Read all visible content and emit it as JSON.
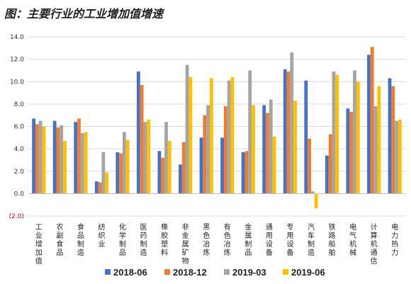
{
  "title": "图：主要行业的工业增加值增速",
  "chart_data": {
    "type": "bar",
    "title": "",
    "xlabel": "",
    "ylabel": "",
    "ylim": [
      -2,
      14
    ],
    "yticks": [
      {
        "value": 14,
        "label": "14.0"
      },
      {
        "value": 12,
        "label": "12.0"
      },
      {
        "value": 10,
        "label": "10.0"
      },
      {
        "value": 8,
        "label": "8.0"
      },
      {
        "value": 6,
        "label": "6.0"
      },
      {
        "value": 4,
        "label": "4.0"
      },
      {
        "value": 2,
        "label": "2.0"
      },
      {
        "value": 0,
        "label": "0.0"
      },
      {
        "value": -2,
        "label": "(2.0)"
      }
    ],
    "categories": [
      "工业增加值",
      "农副食品",
      "食品制造",
      "纺织业",
      "化学制品",
      "医药制造",
      "橡胶塑料",
      "非金属矿物",
      "黑色冶炼",
      "有色冶炼",
      "金属制品",
      "通用设备",
      "专用设备",
      "汽车制造",
      "铁路船舶",
      "电气机械",
      "计算机通信",
      "电力热力"
    ],
    "series": [
      {
        "name": "2018-06",
        "color": "#4472c4",
        "values": [
          6.7,
          6.5,
          6.4,
          1.1,
          3.7,
          10.9,
          3.8,
          2.6,
          5.0,
          5.0,
          3.7,
          7.9,
          11.1,
          10.1,
          3.4,
          7.6,
          12.4,
          10.3
        ]
      },
      {
        "name": "2018-12",
        "color": "#ed7d31",
        "values": [
          6.2,
          5.9,
          6.7,
          1.0,
          3.6,
          9.7,
          3.2,
          4.6,
          7.0,
          7.8,
          3.8,
          7.2,
          10.9,
          4.9,
          5.3,
          7.3,
          13.1,
          9.6
        ]
      },
      {
        "name": "2019-03",
        "color": "#a5a5a5",
        "values": [
          6.5,
          6.1,
          5.4,
          3.7,
          5.5,
          6.4,
          6.4,
          11.5,
          7.9,
          10.1,
          11.0,
          8.4,
          12.6,
          0.2,
          10.9,
          11.0,
          7.8,
          6.5
        ]
      },
      {
        "name": "2019-06",
        "color": "#ffc000",
        "values": [
          6.0,
          4.7,
          5.5,
          1.9,
          4.8,
          6.6,
          4.7,
          10.4,
          10.3,
          10.4,
          7.9,
          5.1,
          8.3,
          -1.3,
          10.6,
          10.0,
          9.6,
          6.6
        ]
      }
    ],
    "legend_position": "bottom",
    "grid": true
  }
}
